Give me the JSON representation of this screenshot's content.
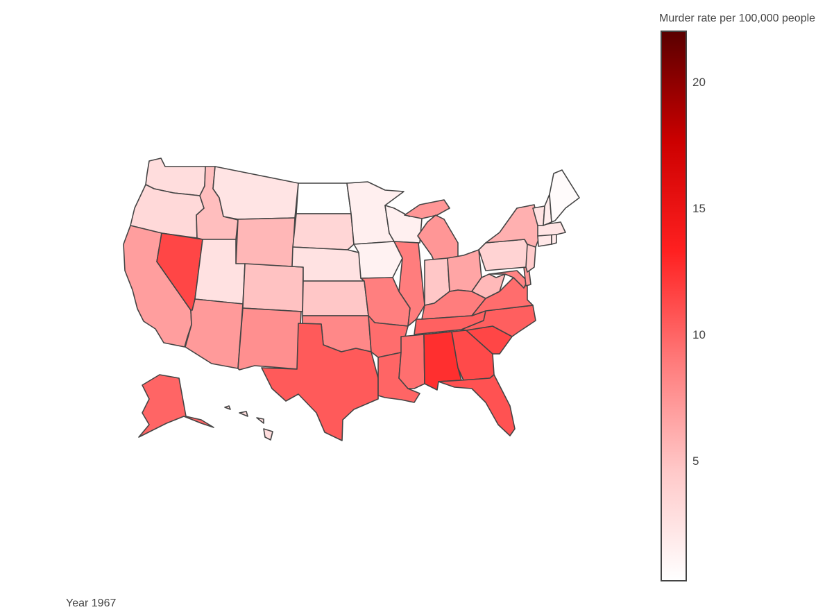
{
  "colorbar": {
    "title": "Murder rate per 100,000 people",
    "min": 0.3,
    "max": 22,
    "ticks": [
      {
        "value": 20,
        "label": "20"
      },
      {
        "value": 15,
        "label": "15"
      },
      {
        "value": 10,
        "label": "10"
      },
      {
        "value": 5,
        "label": "5"
      }
    ],
    "gradient": [
      "#ffffff",
      "#ffc8c8",
      "#ff7a7a",
      "#ff2020",
      "#cc0000",
      "#5a0000"
    ]
  },
  "year_label": "Year 1967",
  "map_data": {
    "type": "choropleth",
    "scope": "usa",
    "metric": "Murder rate per 100,000 people",
    "year": 1967,
    "states": {
      "WA": 3.0,
      "OR": 3.3,
      "CA": 7.0,
      "NV": 11.5,
      "ID": 5.2,
      "MT": 2.4,
      "WY": 5.6,
      "UT": 2.7,
      "AZ": 7.2,
      "CO": 5.0,
      "NM": 7.8,
      "ND": 0.3,
      "SD": 3.5,
      "NE": 2.6,
      "KS": 4.7,
      "OK": 8.2,
      "TX": 10.5,
      "MN": 1.6,
      "IA": 1.3,
      "MO": 8.7,
      "AR": 9.6,
      "LA": 10.0,
      "WI": 1.5,
      "IL": 8.8,
      "MI": 7.4,
      "IN": 4.7,
      "OH": 6.6,
      "KY": 8.8,
      "TN": 10.2,
      "MS": 9.5,
      "AL": 12.6,
      "GA": 11.3,
      "FL": 10.9,
      "SC": 11.5,
      "NC": 10.3,
      "VA": 9.6,
      "WV": 5.5,
      "MD": 8.5,
      "DE": 7.5,
      "PA": 3.8,
      "NJ": 4.3,
      "NY": 6.0,
      "CT": 2.1,
      "RI": 2.0,
      "MA": 2.4,
      "VT": 2.5,
      "NH": 1.7,
      "ME": 0.6,
      "AK": 10.0,
      "HI": 3.0
    }
  }
}
